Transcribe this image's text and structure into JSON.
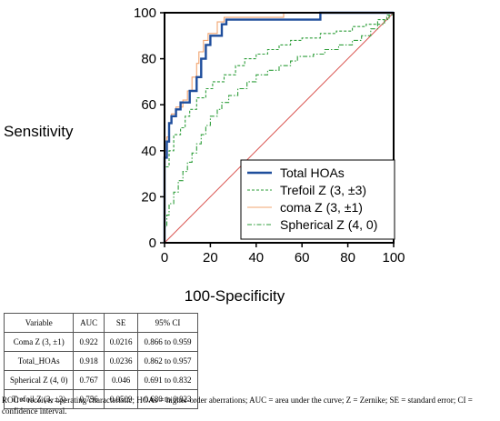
{
  "chart_data": {
    "type": "line",
    "xlabel": "100-Specificity",
    "ylabel": "Sensitivity",
    "xlim": [
      0,
      100
    ],
    "ylim": [
      0,
      100
    ],
    "x_ticks": [
      "0",
      "20",
      "40",
      "60",
      "80",
      "100"
    ],
    "y_ticks": [
      "0",
      "20",
      "40",
      "60",
      "80",
      "100"
    ],
    "legend_position": "bottom-right",
    "reference_line": {
      "color": "#d9534f",
      "points": [
        [
          0,
          0
        ],
        [
          100,
          100
        ]
      ]
    },
    "series": [
      {
        "name": "Total HOAs",
        "color": "#1f4e9c",
        "style": "solid",
        "points": [
          [
            0,
            0
          ],
          [
            0,
            37
          ],
          [
            1,
            37
          ],
          [
            1,
            44
          ],
          [
            2,
            44
          ],
          [
            2,
            52
          ],
          [
            3,
            52
          ],
          [
            3,
            55
          ],
          [
            5,
            55
          ],
          [
            5,
            58
          ],
          [
            7,
            58
          ],
          [
            7,
            61
          ],
          [
            11,
            61
          ],
          [
            11,
            66
          ],
          [
            14,
            66
          ],
          [
            14,
            72
          ],
          [
            16,
            72
          ],
          [
            16,
            80
          ],
          [
            18,
            80
          ],
          [
            18,
            86
          ],
          [
            20,
            86
          ],
          [
            20,
            90
          ],
          [
            25,
            90
          ],
          [
            25,
            95
          ],
          [
            27,
            95
          ],
          [
            27,
            97
          ],
          [
            68,
            97
          ],
          [
            68,
            100
          ],
          [
            100,
            100
          ]
        ]
      },
      {
        "name": "Trefoil Z (3, ±3)",
        "color": "#2e9e3a",
        "style": "dashed",
        "points": [
          [
            0,
            0
          ],
          [
            0,
            33
          ],
          [
            2,
            33
          ],
          [
            2,
            40
          ],
          [
            4,
            40
          ],
          [
            4,
            47
          ],
          [
            7,
            47
          ],
          [
            7,
            50
          ],
          [
            9,
            50
          ],
          [
            9,
            55
          ],
          [
            11,
            55
          ],
          [
            11,
            58
          ],
          [
            14,
            58
          ],
          [
            14,
            63
          ],
          [
            18,
            63
          ],
          [
            18,
            67
          ],
          [
            21,
            67
          ],
          [
            21,
            70
          ],
          [
            26,
            70
          ],
          [
            26,
            73
          ],
          [
            31,
            73
          ],
          [
            31,
            77
          ],
          [
            35,
            77
          ],
          [
            35,
            80
          ],
          [
            40,
            80
          ],
          [
            40,
            82
          ],
          [
            45,
            82
          ],
          [
            45,
            84
          ],
          [
            50,
            84
          ],
          [
            50,
            86
          ],
          [
            55,
            86
          ],
          [
            55,
            88
          ],
          [
            60,
            88
          ],
          [
            60,
            89
          ],
          [
            68,
            89
          ],
          [
            68,
            91
          ],
          [
            75,
            91
          ],
          [
            75,
            92
          ],
          [
            82,
            92
          ],
          [
            82,
            94
          ],
          [
            88,
            94
          ],
          [
            88,
            95
          ],
          [
            93,
            95
          ],
          [
            93,
            97
          ],
          [
            97,
            97
          ],
          [
            97,
            99
          ],
          [
            100,
            99
          ],
          [
            100,
            100
          ]
        ]
      },
      {
        "name": "coma Z (3, ±1)",
        "color": "#f2a46f",
        "style": "solid",
        "points": [
          [
            0,
            0
          ],
          [
            0,
            40
          ],
          [
            1,
            40
          ],
          [
            1,
            46
          ],
          [
            2,
            46
          ],
          [
            2,
            52
          ],
          [
            3,
            52
          ],
          [
            3,
            56
          ],
          [
            5,
            56
          ],
          [
            5,
            59
          ],
          [
            8,
            59
          ],
          [
            8,
            62
          ],
          [
            10,
            62
          ],
          [
            10,
            66
          ],
          [
            12,
            66
          ],
          [
            12,
            72
          ],
          [
            14,
            72
          ],
          [
            14,
            78
          ],
          [
            15,
            78
          ],
          [
            15,
            83
          ],
          [
            17,
            83
          ],
          [
            17,
            88
          ],
          [
            19,
            88
          ],
          [
            19,
            91
          ],
          [
            23,
            91
          ],
          [
            23,
            96
          ],
          [
            26,
            96
          ],
          [
            26,
            98
          ],
          [
            52,
            98
          ],
          [
            52,
            100
          ],
          [
            100,
            100
          ]
        ]
      },
      {
        "name": "Spherical Z (4, 0)",
        "color": "#2e9e3a",
        "style": "dash-dot",
        "points": [
          [
            0,
            0
          ],
          [
            0,
            7
          ],
          [
            1,
            7
          ],
          [
            1,
            12
          ],
          [
            2,
            12
          ],
          [
            2,
            17
          ],
          [
            4,
            17
          ],
          [
            4,
            22
          ],
          [
            6,
            22
          ],
          [
            6,
            27
          ],
          [
            8,
            27
          ],
          [
            8,
            31
          ],
          [
            10,
            31
          ],
          [
            10,
            35
          ],
          [
            12,
            35
          ],
          [
            12,
            39
          ],
          [
            14,
            39
          ],
          [
            14,
            43
          ],
          [
            16,
            43
          ],
          [
            16,
            47
          ],
          [
            18,
            47
          ],
          [
            18,
            51
          ],
          [
            20,
            51
          ],
          [
            20,
            55
          ],
          [
            23,
            55
          ],
          [
            23,
            58
          ],
          [
            25,
            58
          ],
          [
            25,
            61
          ],
          [
            28,
            61
          ],
          [
            28,
            64
          ],
          [
            32,
            64
          ],
          [
            32,
            67
          ],
          [
            36,
            67
          ],
          [
            36,
            70
          ],
          [
            40,
            70
          ],
          [
            40,
            73
          ],
          [
            45,
            73
          ],
          [
            45,
            75
          ],
          [
            50,
            75
          ],
          [
            50,
            77
          ],
          [
            55,
            77
          ],
          [
            55,
            79
          ],
          [
            58,
            79
          ],
          [
            58,
            81
          ],
          [
            65,
            81
          ],
          [
            65,
            82
          ],
          [
            70,
            82
          ],
          [
            70,
            84
          ],
          [
            76,
            84
          ],
          [
            76,
            86
          ],
          [
            82,
            86
          ],
          [
            82,
            88
          ],
          [
            86,
            88
          ],
          [
            86,
            90
          ],
          [
            90,
            90
          ],
          [
            90,
            93
          ],
          [
            93,
            93
          ],
          [
            93,
            95
          ],
          [
            96,
            95
          ],
          [
            96,
            97
          ],
          [
            98,
            97
          ],
          [
            98,
            99
          ],
          [
            100,
            99
          ],
          [
            100,
            100
          ]
        ]
      }
    ]
  },
  "table": {
    "headers": [
      "Variable",
      "AUC",
      "SE",
      "95% CI"
    ],
    "rows": [
      [
        "Coma Z (3, ±1)",
        "0.922",
        "0.0216",
        "0.866 to 0.959"
      ],
      [
        "Total_HOAs",
        "0.918",
        "0.0236",
        "0.862 to 0.957"
      ],
      [
        "Spherical Z (4, 0)",
        "0.767",
        "0.046",
        "0.691 to 0.832"
      ],
      [
        "Trefoil Z (3, ±3)",
        "0.756",
        "0.0509",
        "0.680 to 0.823"
      ]
    ]
  },
  "footnote": "ROC = receiver operating characteristic; HOAs = higher-order aberrations; AUC = area under the curve; Z = Zernike; SE = standard error; CI = confidence interval."
}
